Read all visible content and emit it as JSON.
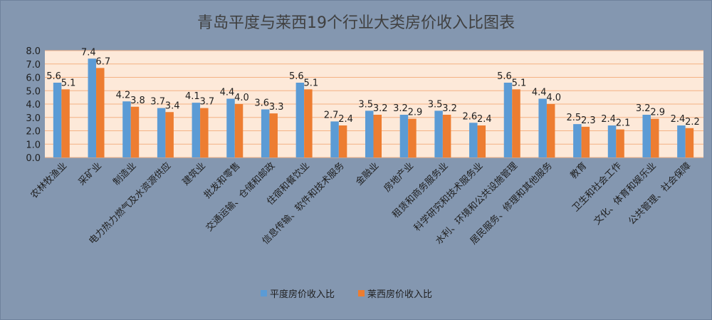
{
  "chart_data": {
    "type": "bar",
    "title": "青岛平度与莱西19个行业大类房价收入比图表",
    "xlabel": "",
    "ylabel": "",
    "ylim": [
      0,
      8
    ],
    "yticks": [
      "0.0",
      "1.0",
      "2.0",
      "3.0",
      "4.0",
      "5.0",
      "6.0",
      "7.0",
      "8.0"
    ],
    "grid": true,
    "legend_position": "bottom",
    "categories": [
      "农林牧渔业",
      "采矿业",
      "制造业",
      "电力热力燃气及水资源供应",
      "建筑业",
      "批发和零售",
      "交通运输、仓储和邮政",
      "住宿和餐饮业",
      "信息传输、软件和技术服务",
      "金融业",
      "房地产业",
      "租赁和商务服务业",
      "科学研究和技术服务业",
      "水利、环境和公共设施管理",
      "居民服务、修理和其他服务",
      "教育",
      "卫生和社会工作",
      "文化、体育和娱乐业",
      "公共管理、社会保障"
    ],
    "series": [
      {
        "name": "平度房价收入比",
        "color": "#5b9bd5",
        "values": [
          5.6,
          7.4,
          4.2,
          3.7,
          4.1,
          4.4,
          3.6,
          5.6,
          2.7,
          3.5,
          3.2,
          3.5,
          2.6,
          5.6,
          4.4,
          2.5,
          2.4,
          3.2,
          2.4
        ]
      },
      {
        "name": "莱西房价收入比",
        "color": "#ed7d31",
        "values": [
          5.1,
          6.7,
          3.8,
          3.4,
          3.7,
          4.0,
          3.3,
          5.1,
          2.4,
          3.2,
          2.9,
          3.2,
          2.4,
          5.1,
          4.0,
          2.3,
          2.1,
          2.9,
          2.2
        ]
      }
    ],
    "colors": {
      "background": "#8497b0",
      "plot_area": "#fde9d9",
      "gridline": "#f4b183",
      "text": "#1f1f1f",
      "title": "#404040"
    }
  }
}
